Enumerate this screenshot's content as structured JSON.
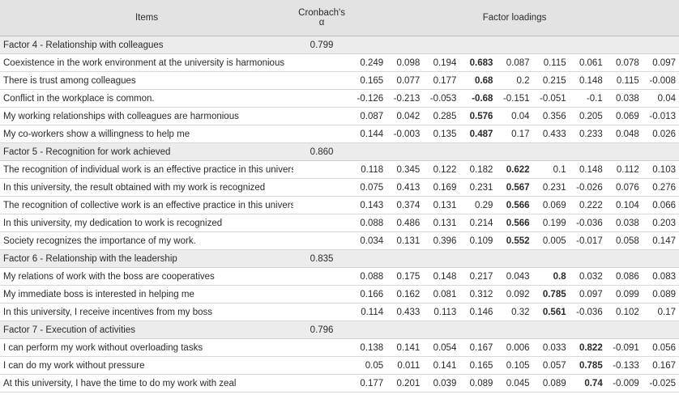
{
  "header": {
    "items": "Items",
    "alpha_line1": "Cronbach's",
    "alpha_line2": "α",
    "loadings": "Factor loadings"
  },
  "groups": [
    {
      "title": "Factor 4 - Relationship with colleagues",
      "alpha": "0.799",
      "rows": [
        {
          "item": "Coexistence in the work environment at the university is harmonious",
          "loadings": [
            "0.249",
            "0.098",
            "0.194",
            "0.683",
            "0.087",
            "0.115",
            "0.061",
            "0.078",
            "0.097"
          ],
          "bold": 3
        },
        {
          "item": "There is trust among colleagues",
          "loadings": [
            "0.165",
            "0.077",
            "0.177",
            "0.68",
            "0.2",
            "0.215",
            "0.148",
            "0.115",
            "-0.008"
          ],
          "bold": 3
        },
        {
          "item": "Conflict in the workplace is common.",
          "loadings": [
            "-0.126",
            "-0.213",
            "-0.053",
            "-0.68",
            "-0.151",
            "-0.051",
            "-0.1",
            "0.038",
            "0.04"
          ],
          "bold": 3
        },
        {
          "item": "My working relationships with colleagues are harmonious",
          "loadings": [
            "0.087",
            "0.042",
            "0.285",
            "0.576",
            "0.04",
            "0.356",
            "0.205",
            "0.069",
            "-0.013"
          ],
          "bold": 3
        },
        {
          "item": "My co-workers show a willingness to help me",
          "loadings": [
            "0.144",
            "-0.003",
            "0.135",
            "0.487",
            "0.17",
            "0.433",
            "0.233",
            "0.048",
            "0.026"
          ],
          "bold": 3
        }
      ]
    },
    {
      "title": "Factor 5 - Recognition for work achieved",
      "alpha": "0.860",
      "rows": [
        {
          "item": "The recognition of individual work is an effective practice in this university",
          "loadings": [
            "0.118",
            "0.345",
            "0.122",
            "0.182",
            "0.622",
            "0.1",
            "0.148",
            "0.112",
            "0.103"
          ],
          "bold": 4
        },
        {
          "item": "In this university, the result obtained with my work is recognized",
          "loadings": [
            "0.075",
            "0.413",
            "0.169",
            "0.231",
            "0.567",
            "0.231",
            "-0.026",
            "0.076",
            "0.276"
          ],
          "bold": 4
        },
        {
          "item": "The recognition of collective work is an effective practice in this university",
          "loadings": [
            "0.143",
            "0.374",
            "0.131",
            "0.29",
            "0.566",
            "0.069",
            "0.222",
            "0.104",
            "0.066"
          ],
          "bold": 4
        },
        {
          "item": "In this university, my dedication to work is recognized",
          "loadings": [
            "0.088",
            "0.486",
            "0.131",
            "0.214",
            "0.566",
            "0.199",
            "-0.036",
            "0.038",
            "0.203"
          ],
          "bold": 4
        },
        {
          "item": "Society recognizes the importance of my work.",
          "loadings": [
            "0.034",
            "0.131",
            "0.396",
            "0.109",
            "0.552",
            "0.005",
            "-0.017",
            "0.058",
            "0.147"
          ],
          "bold": 4
        }
      ]
    },
    {
      "title": "Factor 6 - Relationship with the leadership",
      "alpha": "0.835",
      "rows": [
        {
          "item": "My relations of work with the boss are cooperatives",
          "loadings": [
            "0.088",
            "0.175",
            "0.148",
            "0.217",
            "0.043",
            "0.8",
            "0.032",
            "0.086",
            "0.083"
          ],
          "bold": 5
        },
        {
          "item": "My immediate boss is interested in helping me",
          "loadings": [
            "0.166",
            "0.162",
            "0.081",
            "0.312",
            "0.092",
            "0.785",
            "0.097",
            "0.099",
            "0.089"
          ],
          "bold": 5
        },
        {
          "item": "In this university, I receive incentives from my boss",
          "loadings": [
            "0.114",
            "0.433",
            "0.113",
            "0.146",
            "0.32",
            "0.561",
            "-0.036",
            "0.102",
            "0.17"
          ],
          "bold": 5
        }
      ]
    },
    {
      "title": "Factor 7 - Execution of activities",
      "alpha": "0.796",
      "rows": [
        {
          "item": "I can perform my work without overloading tasks",
          "loadings": [
            "0.138",
            "0.141",
            "0.054",
            "0.167",
            "0.006",
            "0.033",
            "0.822",
            "-0.091",
            "0.056"
          ],
          "bold": 6
        },
        {
          "item": "I can do my work without pressure",
          "loadings": [
            "0.05",
            "0.011",
            "0.141",
            "0.165",
            "0.105",
            "0.057",
            "0.785",
            "-0.133",
            "0.167"
          ],
          "bold": 6
        },
        {
          "item": "At this university, I have the time to do my work with zeal",
          "loadings": [
            "0.177",
            "0.201",
            "0.039",
            "0.089",
            "0.045",
            "0.089",
            "0.74",
            "-0.009",
            "-0.025"
          ],
          "bold": 6
        }
      ]
    }
  ]
}
